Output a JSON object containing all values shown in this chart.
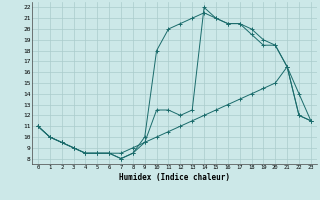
{
  "xlabel": "Humidex (Indice chaleur)",
  "bg_color": "#cce8e8",
  "grid_color": "#aacccc",
  "line_color": "#1a6b6b",
  "xlim": [
    -0.5,
    23.5
  ],
  "ylim": [
    7.5,
    22.5
  ],
  "xticks": [
    0,
    1,
    2,
    3,
    4,
    5,
    6,
    7,
    8,
    9,
    10,
    11,
    12,
    13,
    14,
    15,
    16,
    17,
    18,
    19,
    20,
    21,
    22,
    23
  ],
  "yticks": [
    8,
    9,
    10,
    11,
    12,
    13,
    14,
    15,
    16,
    17,
    18,
    19,
    20,
    21,
    22
  ],
  "line1_x": [
    0,
    1,
    2,
    3,
    4,
    5,
    6,
    7,
    8,
    9,
    10,
    11,
    12,
    13,
    14,
    15,
    16,
    17,
    18,
    19,
    20,
    21,
    22,
    23
  ],
  "line1_y": [
    11,
    10,
    9.5,
    9,
    8.5,
    8.5,
    8.5,
    8,
    8.5,
    9.5,
    12.5,
    12.5,
    12,
    12.5,
    22,
    21,
    20.5,
    20.5,
    20,
    19,
    18.5,
    16.5,
    12,
    11.5
  ],
  "line2_x": [
    0,
    1,
    2,
    3,
    4,
    5,
    6,
    7,
    8,
    9,
    10,
    11,
    12,
    13,
    14,
    15,
    16,
    17,
    18,
    19,
    20,
    21,
    22,
    23
  ],
  "line2_y": [
    11,
    10,
    9.5,
    9,
    8.5,
    8.5,
    8.5,
    8.5,
    9,
    9.5,
    10,
    10.5,
    11,
    11.5,
    12,
    12.5,
    13,
    13.5,
    14,
    14.5,
    15,
    16.5,
    12,
    11.5
  ],
  "line3_x": [
    0,
    1,
    2,
    3,
    4,
    5,
    6,
    7,
    8,
    9,
    10,
    11,
    12,
    13,
    14,
    15,
    16,
    17,
    18,
    19,
    20,
    21,
    22,
    23
  ],
  "line3_y": [
    11,
    10,
    9.5,
    9,
    8.5,
    8.5,
    8.5,
    8,
    8.5,
    10,
    18,
    20,
    20.5,
    21,
    21.5,
    21,
    20.5,
    20.5,
    19.5,
    18.5,
    18.5,
    16.5,
    14,
    11.5
  ]
}
